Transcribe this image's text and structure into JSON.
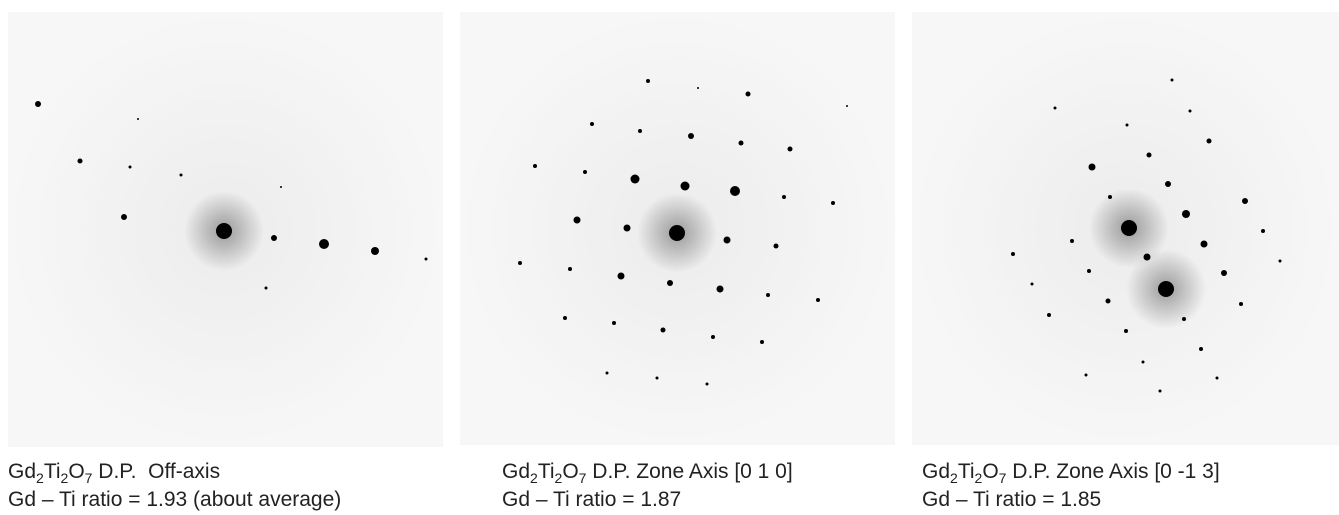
{
  "panels": [
    {
      "caption_line1": [
        "Gd",
        "2",
        "Ti",
        "2",
        "O",
        "7",
        " D.P.  Off-axis"
      ],
      "caption_line2": "Gd – Ti ratio = 1.93 (about average)"
    },
    {
      "caption_line1": [
        "Gd",
        "2",
        "Ti",
        "2",
        "O",
        "7",
        " D.P. Zone Axis [0 1 0]"
      ],
      "caption_line2": "Gd – Ti ratio = 1.87"
    },
    {
      "caption_line1": [
        "Gd",
        "2",
        "Ti",
        "2",
        "O",
        "7",
        " D.P. Zone Axis [0 -1 3]"
      ],
      "caption_line2": "Gd – Ti ratio = 1.85"
    }
  ]
}
